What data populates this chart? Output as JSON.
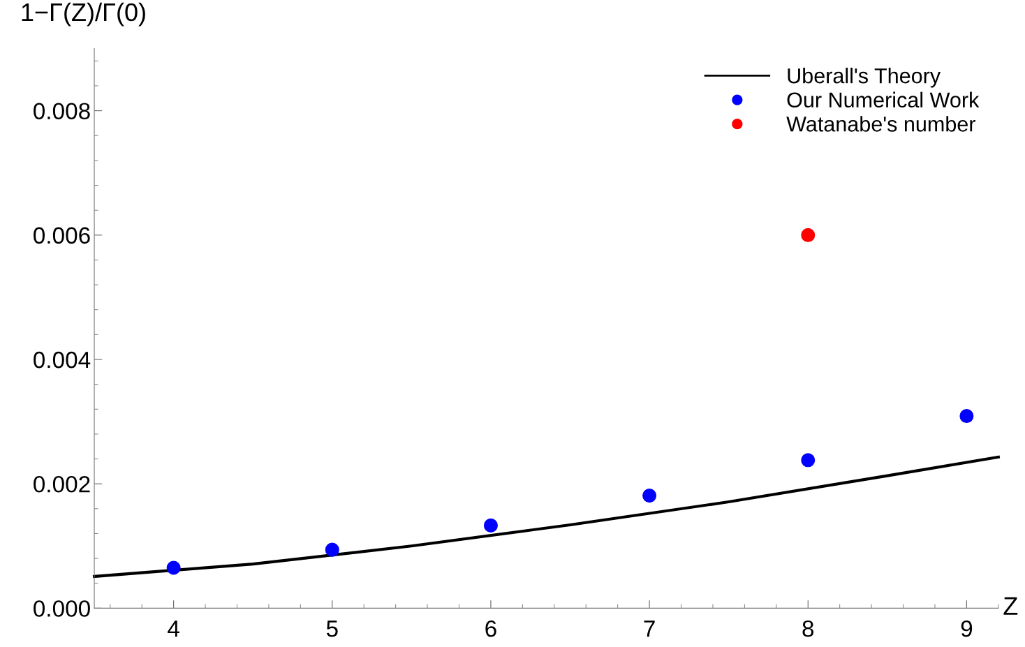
{
  "chart_data": {
    "type": "scatter",
    "xlabel": "Z",
    "ylabel": "1−Γ(Z)/Γ(0)",
    "xlim": [
      3.5,
      9.2
    ],
    "xticks": [
      4,
      5,
      6,
      7,
      8,
      9
    ],
    "ylim": [
      0,
      0.009
    ],
    "yticks": [
      {
        "value": 0,
        "label": "0.000"
      },
      {
        "value": 0.002,
        "label": "0.002"
      },
      {
        "value": 0.004,
        "label": "0.004"
      },
      {
        "value": 0.006,
        "label": "0.006"
      },
      {
        "value": 0.008,
        "label": "0.008"
      }
    ],
    "legend": "top right",
    "grid": false,
    "series": [
      {
        "name": "Uberall's Theory",
        "type": "line",
        "color": "#000000",
        "marker": "none",
        "line_style": "solid",
        "x": [
          3.5,
          4.5,
          5.5,
          6.5,
          7.5,
          8.5,
          9.2
        ],
        "values": [
          0.00051,
          0.00071,
          0.001,
          0.00134,
          0.00171,
          0.00213,
          0.00243
        ]
      },
      {
        "name": "Our Numerical Work",
        "color": "#0000ff",
        "marker": "circle",
        "x": [
          4,
          5,
          6,
          7,
          8,
          9
        ],
        "values": [
          0.00065,
          0.00094,
          0.00133,
          0.00181,
          0.00238,
          0.00309
        ]
      },
      {
        "name": "Watanabe's number",
        "color": "#ff0000",
        "marker": "circle",
        "x": [
          8
        ],
        "values": [
          0.006
        ]
      }
    ]
  }
}
